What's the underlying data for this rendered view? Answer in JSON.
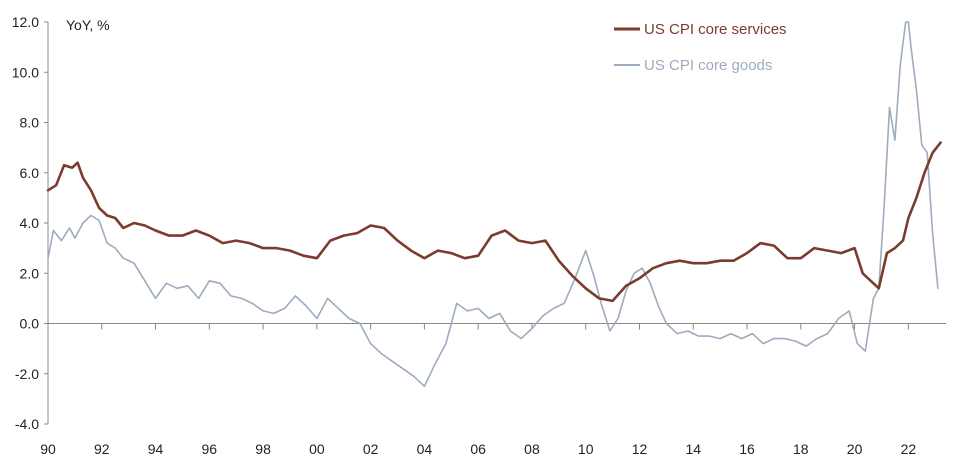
{
  "chart_data": {
    "type": "line",
    "title": "",
    "xlabel": "",
    "ylabel": "YoY, %",
    "ylim": [
      -4,
      12
    ],
    "xlim": [
      1990,
      2023.4
    ],
    "y_ticks": [
      12,
      10,
      8,
      6,
      4,
      2,
      0,
      -2,
      -4
    ],
    "y_tick_labels": [
      "12.0",
      "10.0",
      "8.0",
      "6.0",
      "4.0",
      "2.0",
      "0.0",
      "-2.0",
      "-4.0"
    ],
    "x_ticks": [
      1990,
      1992,
      1994,
      1996,
      1998,
      2000,
      2002,
      2004,
      2006,
      2008,
      2010,
      2012,
      2014,
      2016,
      2018,
      2020,
      2022
    ],
    "x_tick_labels": [
      "90",
      "92",
      "94",
      "96",
      "98",
      "00",
      "02",
      "04",
      "06",
      "08",
      "10",
      "12",
      "14",
      "16",
      "18",
      "20",
      "22"
    ],
    "grid": false,
    "legend_position": "top-right",
    "series": [
      {
        "name": "US CPI core services",
        "color": "#7b3b2f",
        "x": [
          1990.0,
          1990.3,
          1990.6,
          1990.9,
          1991.1,
          1991.3,
          1991.6,
          1991.9,
          1992.2,
          1992.5,
          1992.8,
          1993.2,
          1993.6,
          1994.0,
          1994.5,
          1995.0,
          1995.5,
          1996.0,
          1996.5,
          1997.0,
          1997.5,
          1998.0,
          1998.5,
          1999.0,
          1999.5,
          2000.0,
          2000.5,
          2001.0,
          2001.5,
          2002.0,
          2002.5,
          2003.0,
          2003.5,
          2004.0,
          2004.5,
          2005.0,
          2005.5,
          2006.0,
          2006.5,
          2007.0,
          2007.5,
          2008.0,
          2008.5,
          2009.0,
          2009.5,
          2010.0,
          2010.5,
          2011.0,
          2011.5,
          2012.0,
          2012.5,
          2013.0,
          2013.5,
          2014.0,
          2014.5,
          2015.0,
          2015.5,
          2016.0,
          2016.5,
          2017.0,
          2017.5,
          2018.0,
          2018.5,
          2019.0,
          2019.5,
          2020.0,
          2020.3,
          2020.6,
          2020.9,
          2021.2,
          2021.5,
          2021.8,
          2022.0,
          2022.3,
          2022.6,
          2022.9,
          2023.2
        ],
        "values": [
          5.3,
          5.5,
          6.3,
          6.2,
          6.4,
          5.8,
          5.3,
          4.6,
          4.3,
          4.2,
          3.8,
          4.0,
          3.9,
          3.7,
          3.5,
          3.5,
          3.7,
          3.5,
          3.2,
          3.3,
          3.2,
          3.0,
          3.0,
          2.9,
          2.7,
          2.6,
          3.3,
          3.5,
          3.6,
          3.9,
          3.8,
          3.3,
          2.9,
          2.6,
          2.9,
          2.8,
          2.6,
          2.7,
          3.5,
          3.7,
          3.3,
          3.2,
          3.3,
          2.5,
          1.9,
          1.4,
          1.0,
          0.9,
          1.5,
          1.8,
          2.2,
          2.4,
          2.5,
          2.4,
          2.4,
          2.5,
          2.5,
          2.8,
          3.2,
          3.1,
          2.6,
          2.6,
          3.0,
          2.9,
          2.8,
          3.0,
          2.0,
          1.7,
          1.4,
          2.8,
          3.0,
          3.3,
          4.2,
          5.0,
          6.0,
          6.8,
          7.2
        ]
      },
      {
        "name": "US CPI core goods",
        "color": "#9dacbd",
        "x": [
          1990.0,
          1990.2,
          1990.5,
          1990.8,
          1991.0,
          1991.3,
          1991.6,
          1991.9,
          1992.2,
          1992.5,
          1992.8,
          1993.2,
          1993.6,
          1994.0,
          1994.4,
          1994.8,
          1995.2,
          1995.6,
          1996.0,
          1996.4,
          1996.8,
          1997.2,
          1997.6,
          1998.0,
          1998.4,
          1998.8,
          1999.2,
          1999.6,
          2000.0,
          2000.4,
          2000.8,
          2001.2,
          2001.6,
          2002.0,
          2002.4,
          2002.8,
          2003.2,
          2003.6,
          2004.0,
          2004.4,
          2004.8,
          2005.2,
          2005.6,
          2006.0,
          2006.4,
          2006.8,
          2007.2,
          2007.6,
          2008.0,
          2008.4,
          2008.8,
          2009.2,
          2009.6,
          2010.0,
          2010.3,
          2010.6,
          2010.9,
          2011.2,
          2011.5,
          2011.8,
          2012.1,
          2012.4,
          2012.7,
          2013.0,
          2013.4,
          2013.8,
          2014.2,
          2014.6,
          2015.0,
          2015.4,
          2015.8,
          2016.2,
          2016.6,
          2017.0,
          2017.4,
          2017.8,
          2018.2,
          2018.6,
          2019.0,
          2019.4,
          2019.8,
          2020.1,
          2020.4,
          2020.7,
          2020.9,
          2021.1,
          2021.3,
          2021.5,
          2021.7,
          2021.9,
          2022.0,
          2022.1,
          2022.3,
          2022.5,
          2022.7,
          2022.9,
          2023.1
        ],
        "values": [
          2.6,
          3.7,
          3.3,
          3.8,
          3.4,
          4.0,
          4.3,
          4.1,
          3.2,
          3.0,
          2.6,
          2.4,
          1.7,
          1.0,
          1.6,
          1.4,
          1.5,
          1.0,
          1.7,
          1.6,
          1.1,
          1.0,
          0.8,
          0.5,
          0.4,
          0.6,
          1.1,
          0.7,
          0.2,
          1.0,
          0.6,
          0.2,
          0.0,
          -0.8,
          -1.2,
          -1.5,
          -1.8,
          -2.1,
          -2.5,
          -1.6,
          -0.8,
          0.8,
          0.5,
          0.6,
          0.2,
          0.4,
          -0.3,
          -0.6,
          -0.2,
          0.3,
          0.6,
          0.8,
          1.8,
          2.9,
          1.9,
          0.7,
          -0.3,
          0.2,
          1.3,
          2.0,
          2.2,
          1.6,
          0.7,
          0.0,
          -0.4,
          -0.3,
          -0.5,
          -0.5,
          -0.6,
          -0.4,
          -0.6,
          -0.4,
          -0.8,
          -0.6,
          -0.6,
          -0.7,
          -0.9,
          -0.6,
          -0.4,
          0.2,
          0.5,
          -0.8,
          -1.1,
          1.0,
          1.4,
          4.7,
          8.6,
          7.3,
          10.3,
          12.0,
          12.0,
          11.0,
          9.3,
          7.1,
          6.8,
          3.6,
          1.4
        ]
      }
    ]
  }
}
